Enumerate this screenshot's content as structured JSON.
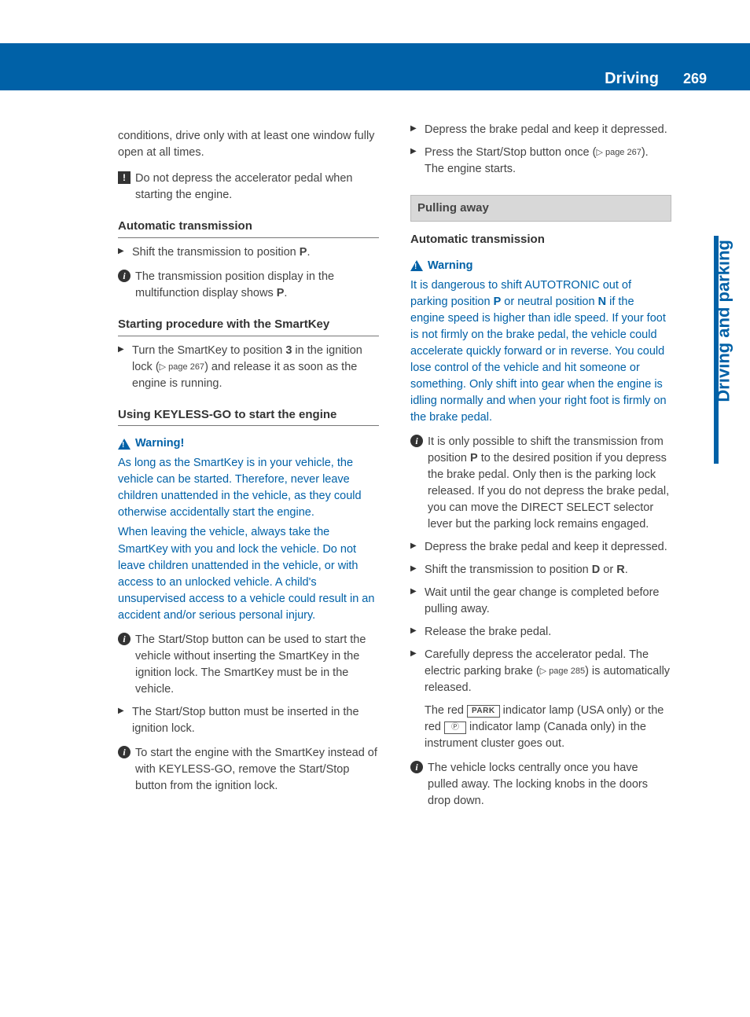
{
  "page": {
    "section": "Driving",
    "number": "269",
    "side_tab": "Driving and parking"
  },
  "colors": {
    "brand": "#0061a7",
    "text": "#444444",
    "heading": "#333333",
    "gray_bg": "#d8d8d8"
  },
  "left": {
    "intro": "conditions, drive only with at least one window fully open at all times.",
    "caution1": "Do not depress the accelerator pedal when starting the engine.",
    "h_auto": "Automatic transmission",
    "step_shift_p_a": "Shift the transmission to position ",
    "step_shift_p_b": "P",
    "step_shift_p_c": ".",
    "info_disp_a": "The transmission position display in the multifunction display shows ",
    "info_disp_b": "P",
    "info_disp_c": ".",
    "h_smartkey": "Starting procedure with the SmartKey",
    "step_turnkey_a": "Turn the SmartKey to position ",
    "step_turnkey_b": "3",
    "step_turnkey_c": " in the ignition lock (",
    "step_turnkey_ref": "▷ page 267",
    "step_turnkey_d": ") and release it as soon as the engine is running.",
    "h_keyless": "Using KEYLESS-GO to start the engine",
    "warn_title": "Warning!",
    "warn1_p1": "As long as the SmartKey is in your vehicle, the vehicle can be started. Therefore, never leave children unattended in the vehicle, as they could otherwise accidentally start the engine.",
    "warn1_p2": "When leaving the vehicle, always take the SmartKey with you and lock the vehicle. Do not leave children unattended in the vehicle, or with access to an unlocked vehicle. A child's unsupervised access to a vehicle could result in an accident and/or serious personal injury.",
    "info_startstop": "The Start/Stop button can be used to start the vehicle without inserting the SmartKey in the ignition lock. The SmartKey must be in the vehicle.",
    "step_inserted": "The Start/Stop button must be inserted in the ignition lock.",
    "info_instead": "To start the engine with the SmartKey instead of with KEYLESS-GO, remove the Start/Stop button from the ignition lock."
  },
  "right": {
    "step_brake": "Depress the brake pedal and keep it depressed.",
    "step_press_a": "Press the Start/Stop button once (",
    "step_press_ref": "▷ page 267",
    "step_press_b": ").",
    "step_press_c": "The engine starts.",
    "h_pulling": "Pulling away",
    "h_auto2": "Automatic transmission",
    "warn_title2": "Warning",
    "warn2_a": "It is dangerous to shift AUTOTRONIC out of parking position ",
    "warn2_p": "P",
    "warn2_b": " or neutral position ",
    "warn2_n": "N",
    "warn2_c": " if the engine speed is higher than idle speed. If your foot is not firmly on the brake pedal, the vehicle could accelerate quickly forward or in reverse. You could lose control of the vehicle and hit someone or something. Only shift into gear when the engine is idling normally and when your right foot is firmly on the brake pedal.",
    "info_shift_a": "It is only possible to shift the transmission from position ",
    "info_shift_p": "P",
    "info_shift_b": " to the desired position if you depress the brake pedal. Only then is the parking lock released. If you do not depress the brake pedal, you can move the DIRECT SELECT selector lever but the parking lock remains engaged.",
    "step_brake2": "Depress the brake pedal and keep it depressed.",
    "step_dr_a": "Shift the transmission to position ",
    "step_dr_d": "D",
    "step_dr_or": " or ",
    "step_dr_r": "R",
    "step_dr_b": ".",
    "step_wait": "Wait until the gear change is completed before pulling away.",
    "step_release": "Release the brake pedal.",
    "step_accel_a": "Carefully depress the accelerator pedal. The electric parking brake (",
    "step_accel_ref": "▷ page 285",
    "step_accel_b": ") is automatically released.",
    "lamp_a": "The red ",
    "lamp_park": "PARK",
    "lamp_b": " indicator lamp (USA only) or the red ",
    "lamp_p": "Ⓟ",
    "lamp_c": " indicator lamp (Canada only) in the instrument cluster goes out.",
    "info_locks": "The vehicle locks centrally once you have pulled away. The locking knobs in the doors drop down."
  }
}
